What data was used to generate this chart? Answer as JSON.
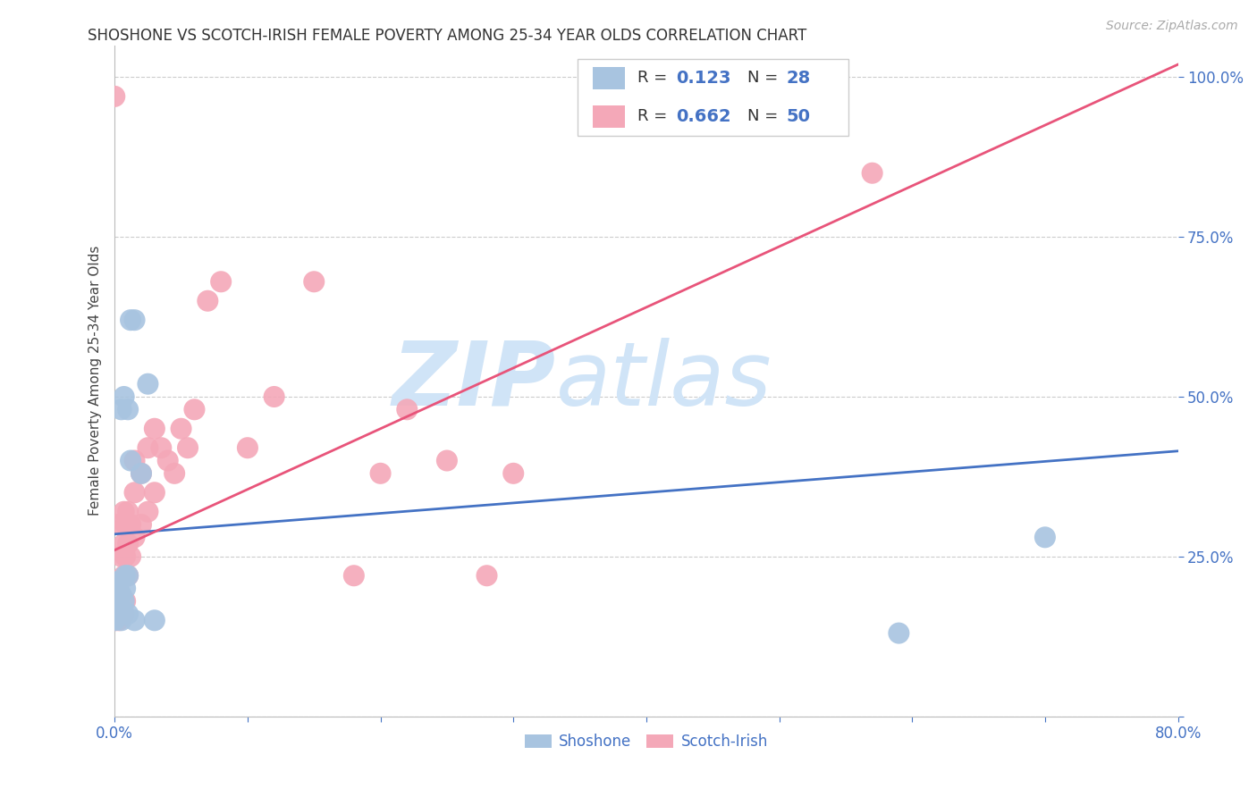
{
  "title": "SHOSHONE VS SCOTCH-IRISH FEMALE POVERTY AMONG 25-34 YEAR OLDS CORRELATION CHART",
  "source": "Source: ZipAtlas.com",
  "ylabel": "Female Poverty Among 25-34 Year Olds",
  "xlim": [
    0.0,
    0.8
  ],
  "ylim": [
    0.0,
    1.05
  ],
  "xticks": [
    0.0,
    0.1,
    0.2,
    0.3,
    0.4,
    0.5,
    0.6,
    0.7,
    0.8
  ],
  "xticklabels": [
    "0.0%",
    "",
    "",
    "",
    "",
    "",
    "",
    "",
    "80.0%"
  ],
  "ytick_positions": [
    0.0,
    0.25,
    0.5,
    0.75,
    1.0
  ],
  "yticklabels_right": [
    "",
    "25.0%",
    "50.0%",
    "75.0%",
    "100.0%"
  ],
  "shoshone_R": 0.123,
  "shoshone_N": 28,
  "scotch_irish_R": 0.662,
  "scotch_irish_N": 50,
  "shoshone_color": "#a8c4e0",
  "scotch_irish_color": "#f4a8b8",
  "shoshone_line_color": "#4472c4",
  "scotch_irish_line_color": "#e8547a",
  "legend_text_color": "#4472c4",
  "watermark_color": "#d0e4f7",
  "shoshone_line": [
    0.0,
    0.8,
    0.285,
    0.415
  ],
  "scotch_irish_line": [
    0.0,
    0.8,
    0.26,
    1.02
  ],
  "shoshone_x": [
    0.0,
    0.0,
    0.0,
    0.0,
    0.003,
    0.003,
    0.003,
    0.005,
    0.005,
    0.005,
    0.005,
    0.007,
    0.007,
    0.007,
    0.008,
    0.008,
    0.01,
    0.01,
    0.01,
    0.012,
    0.012,
    0.015,
    0.015,
    0.02,
    0.025,
    0.03,
    0.59,
    0.7
  ],
  "shoshone_y": [
    0.15,
    0.17,
    0.19,
    0.21,
    0.16,
    0.18,
    0.2,
    0.15,
    0.17,
    0.19,
    0.48,
    0.16,
    0.18,
    0.5,
    0.2,
    0.22,
    0.16,
    0.48,
    0.22,
    0.4,
    0.62,
    0.15,
    0.62,
    0.38,
    0.52,
    0.15,
    0.13,
    0.28
  ],
  "scotch_irish_x": [
    0.0,
    0.0,
    0.0,
    0.0,
    0.003,
    0.003,
    0.003,
    0.003,
    0.005,
    0.005,
    0.005,
    0.007,
    0.007,
    0.007,
    0.007,
    0.008,
    0.008,
    0.008,
    0.01,
    0.01,
    0.01,
    0.012,
    0.012,
    0.015,
    0.015,
    0.015,
    0.02,
    0.02,
    0.025,
    0.025,
    0.03,
    0.03,
    0.035,
    0.04,
    0.045,
    0.05,
    0.055,
    0.06,
    0.07,
    0.08,
    0.1,
    0.12,
    0.15,
    0.18,
    0.2,
    0.22,
    0.25,
    0.28,
    0.3,
    0.57
  ],
  "scotch_irish_y": [
    0.15,
    0.17,
    0.18,
    0.97,
    0.15,
    0.17,
    0.2,
    0.3,
    0.16,
    0.18,
    0.25,
    0.16,
    0.22,
    0.27,
    0.32,
    0.18,
    0.25,
    0.3,
    0.22,
    0.27,
    0.32,
    0.25,
    0.3,
    0.28,
    0.35,
    0.4,
    0.3,
    0.38,
    0.32,
    0.42,
    0.35,
    0.45,
    0.42,
    0.4,
    0.38,
    0.45,
    0.42,
    0.48,
    0.65,
    0.68,
    0.42,
    0.5,
    0.68,
    0.22,
    0.38,
    0.48,
    0.4,
    0.22,
    0.38,
    0.85
  ]
}
